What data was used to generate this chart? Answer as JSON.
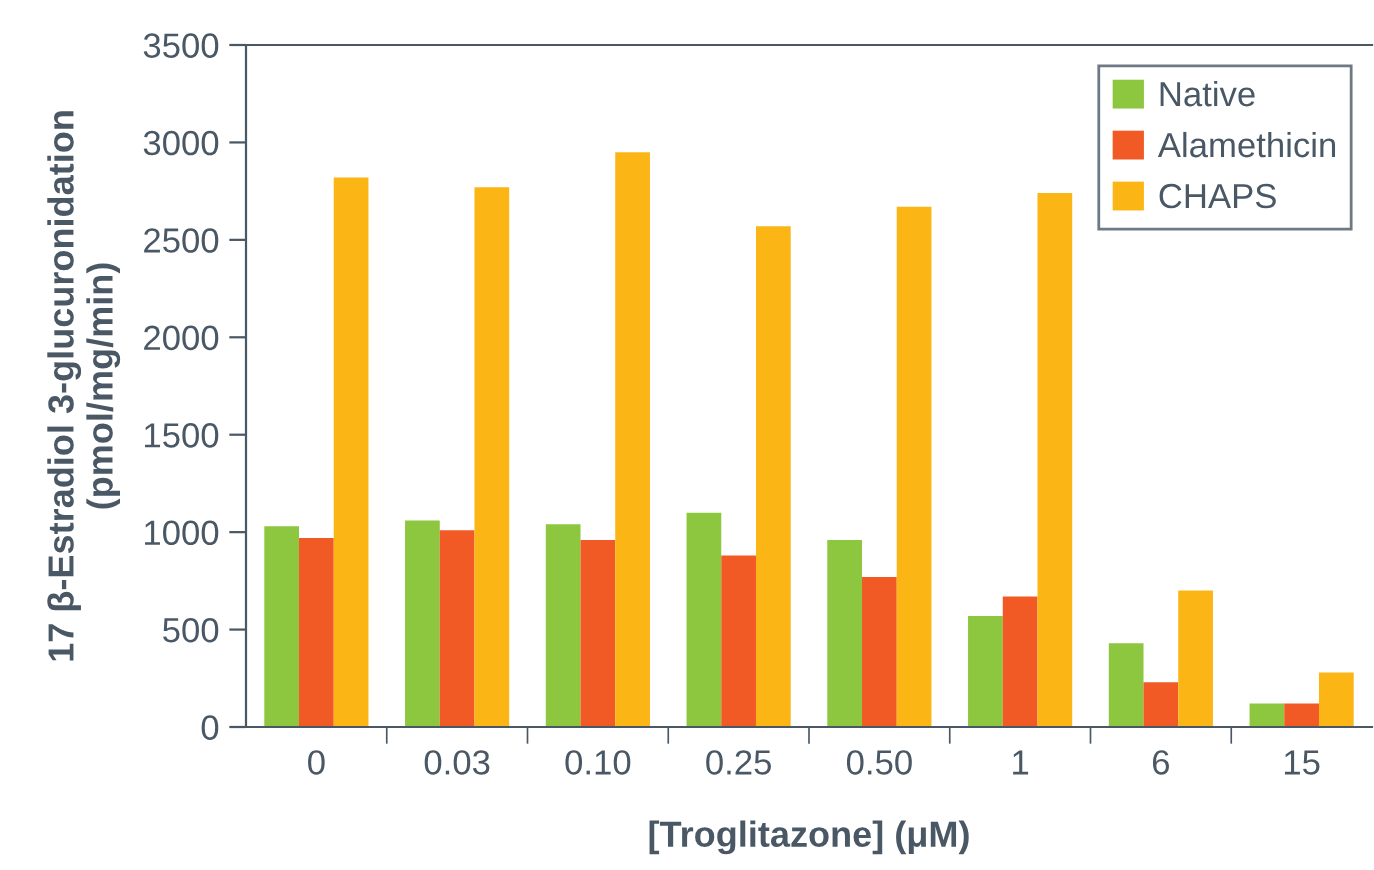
{
  "chart_data": {
    "type": "bar",
    "xlabel": "[Troglitazone] (μM)",
    "ylabel": "17 β-Estradiol 3-glucuronidation\n(pmol/mg/min)",
    "categories": [
      "0",
      "0.03",
      "0.10",
      "0.25",
      "0.50",
      "1",
      "6",
      "15"
    ],
    "series": [
      {
        "name": "Native",
        "color": "#8dc63f",
        "values": [
          1030,
          1060,
          1040,
          1100,
          960,
          570,
          430,
          120
        ]
      },
      {
        "name": "Alamethicin",
        "color": "#f15a24",
        "values": [
          970,
          1010,
          960,
          880,
          770,
          670,
          230,
          120
        ]
      },
      {
        "name": "CHAPS",
        "color": "#fbb615",
        "values": [
          2820,
          2770,
          2950,
          2570,
          2670,
          2740,
          700,
          280
        ]
      }
    ],
    "ylim": [
      0,
      3500
    ],
    "yticks": [
      0,
      500,
      1000,
      1500,
      2000,
      2500,
      3000,
      3500
    ],
    "legend": "top right",
    "grid": false
  }
}
